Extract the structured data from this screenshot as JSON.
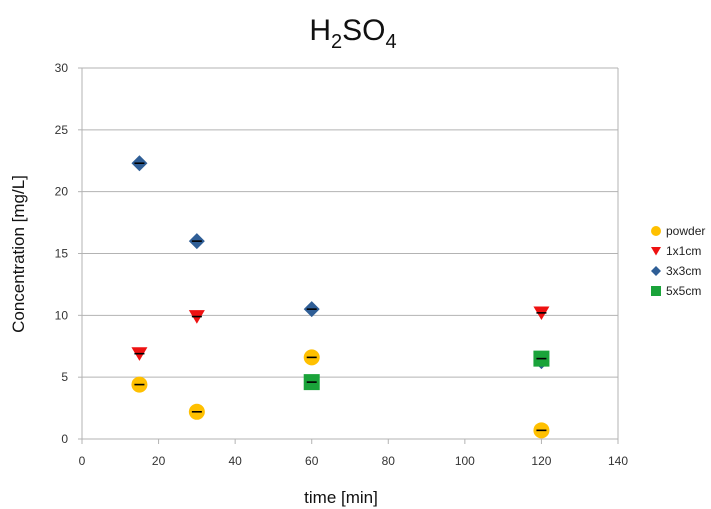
{
  "chart_data": {
    "type": "scatter",
    "title_main": "H",
    "title_sub1": "2",
    "title_mid": "SO",
    "title_sub2": "4",
    "xlabel": "time [min]",
    "ylabel": "Concentration [mg/L]",
    "xlim": [
      0,
      140
    ],
    "ylim": [
      0,
      30
    ],
    "xticks": [
      0,
      20,
      40,
      60,
      80,
      100,
      120,
      140
    ],
    "yticks": [
      0,
      5,
      10,
      15,
      20,
      25,
      30
    ],
    "grid": "horizontal",
    "legend_position": "right",
    "series": [
      {
        "name": "powder",
        "marker": "circle",
        "color": "#FFC000",
        "points": [
          [
            15,
            4.4
          ],
          [
            30,
            2.2
          ],
          [
            60,
            6.6
          ],
          [
            120,
            0.7
          ]
        ]
      },
      {
        "name": "1x1cm",
        "marker": "triangle-down",
        "color": "#EE1111",
        "points": [
          [
            15,
            6.9
          ],
          [
            30,
            9.9
          ],
          [
            120,
            10.2
          ]
        ]
      },
      {
        "name": "3x3cm",
        "marker": "diamond",
        "color": "#2F5E96",
        "points": [
          [
            15,
            22.3
          ],
          [
            30,
            16.0
          ],
          [
            60,
            10.5
          ],
          [
            120,
            6.3
          ]
        ]
      },
      {
        "name": "5x5cm",
        "marker": "square",
        "color": "#1AA33A",
        "points": [
          [
            60,
            4.6
          ],
          [
            120,
            6.5
          ]
        ]
      }
    ]
  }
}
